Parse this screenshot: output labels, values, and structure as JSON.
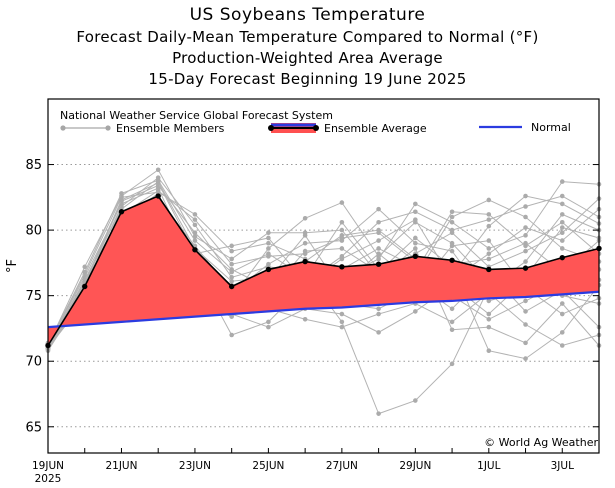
{
  "chart_data": {
    "type": "line",
    "title": "US Soybeans Temperature",
    "subtitle_lines": [
      "Forecast Daily-Mean Temperature Compared to Normal (°F)",
      "Production-Weighted Area Average",
      "15-Day Forecast Beginning 19 June 2025"
    ],
    "ylabel": "°F",
    "ylim": [
      63,
      90
    ],
    "yticks": [
      65,
      70,
      75,
      80,
      85
    ],
    "xlim": [
      0,
      15
    ],
    "xticks": [
      {
        "x": 0,
        "label": "19JUN",
        "sub": "2025"
      },
      {
        "x": 2,
        "label": "21JUN"
      },
      {
        "x": 4,
        "label": "23JUN"
      },
      {
        "x": 6,
        "label": "25JUN"
      },
      {
        "x": 8,
        "label": "27JUN"
      },
      {
        "x": 10,
        "label": "29JUN"
      },
      {
        "x": 12,
        "label": "1JUL"
      },
      {
        "x": 14,
        "label": "3JUL"
      }
    ],
    "legend_title": "National Weather Service Global Forecast System",
    "legend": [
      {
        "name": "Ensemble Members",
        "color": "#a6a6a6"
      },
      {
        "name": "Ensemble Average",
        "color": "#ff5050"
      },
      {
        "name": "Normal",
        "color": "#2b3be0"
      }
    ],
    "copyright": "© World Ag Weather",
    "x": [
      0,
      1,
      2,
      3,
      4,
      5,
      6,
      7,
      8,
      9,
      10,
      11,
      12,
      13,
      14,
      15
    ],
    "ensemble_average": [
      71.2,
      75.7,
      81.4,
      82.6,
      78.5,
      75.7,
      77.0,
      77.6,
      77.2,
      77.4,
      78.0,
      77.7,
      77.0,
      77.1,
      77.9,
      78.6
    ],
    "normal": [
      72.6,
      72.8,
      73.0,
      73.2,
      73.4,
      73.6,
      73.8,
      74.0,
      74.1,
      74.3,
      74.5,
      74.6,
      74.8,
      74.9,
      75.1,
      75.3
    ],
    "ensemble_members": [
      [
        71.2,
        77.2,
        82.6,
        84.6,
        79.5,
        77.8,
        79.8,
        79.8,
        80.0,
        76.6,
        78.2,
        79.8,
        77.2,
        78.4,
        79.8,
        82.4
      ],
      [
        71.0,
        76.2,
        81.6,
        83.7,
        78.6,
        76.1,
        76.4,
        77.6,
        79.6,
        80.0,
        77.8,
        76.6,
        80.3,
        82.6,
        82.0,
        80.5
      ],
      [
        70.8,
        75.2,
        80.8,
        82.8,
        76.6,
        74.8,
        78.6,
        80.9,
        82.1,
        78.0,
        80.6,
        79.0,
        76.0,
        76.4,
        80.2,
        79.4
      ],
      [
        71.4,
        75.8,
        82.2,
        83.4,
        79.8,
        77.0,
        75.6,
        76.6,
        76.4,
        77.8,
        82.0,
        80.6,
        78.6,
        79.6,
        83.7,
        83.5
      ],
      [
        71.1,
        74.8,
        80.6,
        81.8,
        75.6,
        75.2,
        77.4,
        79.0,
        79.2,
        81.6,
        79.0,
        78.4,
        74.6,
        75.4,
        77.4,
        76.2
      ],
      [
        71.3,
        76.6,
        82.5,
        82.9,
        81.2,
        78.4,
        79.0,
        77.8,
        76.0,
        75.2,
        76.4,
        81.0,
        82.3,
        81.0,
        78.6,
        77.6
      ],
      [
        70.9,
        75.4,
        81.2,
        82.2,
        77.8,
        74.2,
        74.6,
        75.0,
        77.0,
        78.6,
        77.2,
        75.0,
        73.2,
        74.6,
        76.0,
        77.0
      ],
      [
        71.0,
        76.0,
        81.8,
        84.0,
        80.4,
        76.4,
        77.2,
        76.8,
        73.0,
        66.0,
        67.0,
        69.8,
        75.6,
        77.6,
        81.2,
        80.0
      ],
      [
        71.2,
        75.0,
        80.2,
        81.2,
        74.6,
        73.4,
        75.2,
        78.4,
        78.6,
        76.8,
        79.4,
        77.2,
        70.8,
        70.2,
        72.2,
        75.8
      ],
      [
        71.1,
        75.6,
        81.0,
        82.4,
        78.8,
        75.4,
        76.0,
        74.6,
        75.8,
        78.2,
        76.0,
        74.0,
        76.8,
        73.8,
        75.4,
        72.6
      ],
      [
        71.3,
        76.4,
        82.0,
        83.2,
        77.2,
        72.0,
        73.0,
        75.8,
        77.8,
        79.2,
        80.8,
        76.2,
        78.2,
        80.2,
        79.2,
        81.6
      ],
      [
        70.9,
        75.0,
        80.8,
        81.6,
        76.0,
        74.8,
        76.8,
        77.2,
        74.4,
        74.0,
        75.4,
        78.8,
        79.2,
        75.6,
        73.6,
        74.8
      ],
      [
        71.0,
        74.6,
        81.4,
        82.6,
        78.0,
        75.8,
        74.0,
        73.2,
        72.6,
        73.6,
        74.4,
        73.0,
        75.2,
        72.8,
        71.2,
        72.0
      ],
      [
        71.2,
        76.8,
        82.8,
        83.8,
        79.2,
        76.8,
        78.2,
        76.4,
        80.6,
        77.0,
        76.8,
        81.4,
        81.2,
        78.8,
        80.6,
        78.2
      ],
      [
        71.1,
        75.2,
        80.4,
        82.0,
        76.4,
        73.6,
        72.6,
        74.0,
        73.6,
        72.2,
        73.8,
        75.8,
        73.6,
        76.2,
        75.0,
        74.4
      ],
      [
        71.2,
        76.2,
        81.2,
        83.0,
        80.8,
        77.4,
        78.0,
        78.2,
        79.4,
        79.8,
        77.6,
        77.4,
        77.8,
        79.0,
        76.8,
        79.2
      ],
      [
        71.0,
        75.4,
        80.6,
        82.2,
        77.4,
        74.0,
        76.2,
        79.6,
        75.4,
        76.4,
        78.6,
        72.4,
        72.6,
        71.4,
        74.4,
        71.2
      ],
      [
        71.3,
        76.0,
        82.3,
        83.6,
        78.2,
        78.8,
        79.4,
        76.0,
        78.0,
        80.6,
        81.4,
        80.0,
        80.8,
        81.8,
        82.6,
        81.0
      ]
    ]
  }
}
